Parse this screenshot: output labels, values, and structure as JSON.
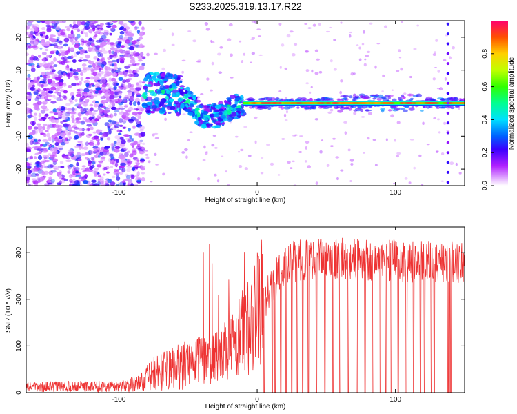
{
  "chart_data": [
    {
      "type": "heatmap",
      "title": "S233.2025.319.13.17.R22",
      "xlabel": "Height of straight line (km)",
      "ylabel": "Frequency (Hz)",
      "xlim": [
        -167,
        150
      ],
      "ylim": [
        -25,
        25
      ],
      "xticks": [
        -100,
        0,
        100
      ],
      "yticks": [
        -20,
        -10,
        0,
        10,
        20
      ],
      "colorbar": {
        "label": "Normalized spectral amplitude",
        "range": [
          0,
          1
        ],
        "ticks": [
          0.0,
          0.2,
          0.4,
          0.6,
          0.8
        ]
      },
      "regions": [
        {
          "name": "noise",
          "x_range": [
            -167,
            -82
          ],
          "description_level": "scattered low amplitude 0.1-0.3"
        },
        {
          "name": "transition",
          "x_range": [
            -82,
            -10
          ],
          "center_freq_hz": [
            [
              -80,
              3
            ],
            [
              -60,
              3
            ],
            [
              -50,
              1
            ],
            [
              -40,
              -4
            ],
            [
              -30,
              -4
            ],
            [
              -20,
              -2
            ],
            [
              -10,
              0
            ]
          ]
        },
        {
          "name": "signal",
          "x_range": [
            -10,
            150
          ],
          "center_freq_hz": 0,
          "peak_amplitude": 0.95
        }
      ]
    },
    {
      "type": "line",
      "xlabel": "Height of straight line (km)",
      "ylabel": "SNR (10 * v/v)",
      "xlim": [
        -167,
        150
      ],
      "ylim": [
        0,
        355
      ],
      "xticks": [
        -100,
        0,
        100
      ],
      "yticks": [
        0,
        100,
        200,
        300
      ],
      "series": [
        {
          "name": "SNR",
          "color": "#ee3333",
          "envelope_x": [
            -167,
            -100,
            -85,
            -75,
            -50,
            -40,
            -25,
            -15,
            -5,
            5,
            10,
            20,
            25,
            40,
            60,
            80,
            100,
            120,
            140,
            150
          ],
          "envelope_mean": [
            12,
            14,
            20,
            40,
            60,
            70,
            85,
            110,
            150,
            200,
            230,
            265,
            280,
            288,
            288,
            285,
            282,
            280,
            280,
            280
          ],
          "dropout_x": [
            5,
            11,
            13,
            17,
            21,
            25,
            29,
            33,
            37,
            43,
            49,
            55,
            60,
            66,
            72,
            78,
            84,
            89,
            93,
            97,
            102,
            108,
            113,
            118,
            121,
            126,
            128,
            138,
            139,
            140
          ]
        }
      ]
    }
  ]
}
